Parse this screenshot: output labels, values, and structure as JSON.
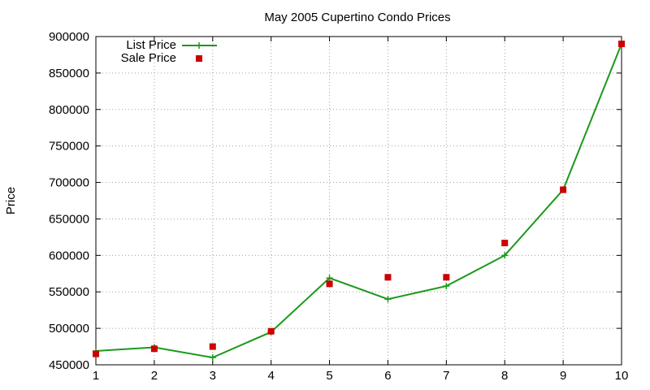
{
  "colors": {
    "list_line": "#1a9a1a",
    "sale_marker": "#cc0000",
    "grid": "#a0a0a0"
  },
  "chart_data": {
    "type": "line",
    "title": "May 2005 Cupertino Condo Prices",
    "xlabel": "",
    "ylabel": "Price",
    "x": [
      1,
      2,
      3,
      4,
      5,
      6,
      7,
      8,
      9,
      10
    ],
    "xlim": [
      1,
      10
    ],
    "ylim": [
      450000,
      900000
    ],
    "xticks": [
      "1",
      "2",
      "3",
      "4",
      "5",
      "6",
      "7",
      "8",
      "9",
      "10"
    ],
    "yticks": [
      "450000",
      "500000",
      "550000",
      "600000",
      "650000",
      "700000",
      "750000",
      "800000",
      "850000",
      "900000"
    ],
    "grid": true,
    "legend_position": "top-left",
    "series": [
      {
        "name": "List Price",
        "style": "line-with-plus-markers",
        "values": [
          469000,
          474000,
          460000,
          495000,
          569000,
          540000,
          558000,
          600000,
          690000,
          890000
        ]
      },
      {
        "name": "Sale Price",
        "style": "square-markers",
        "values": [
          465000,
          472000,
          475000,
          496000,
          561000,
          570000,
          570000,
          617000,
          690000,
          890000
        ]
      }
    ]
  }
}
